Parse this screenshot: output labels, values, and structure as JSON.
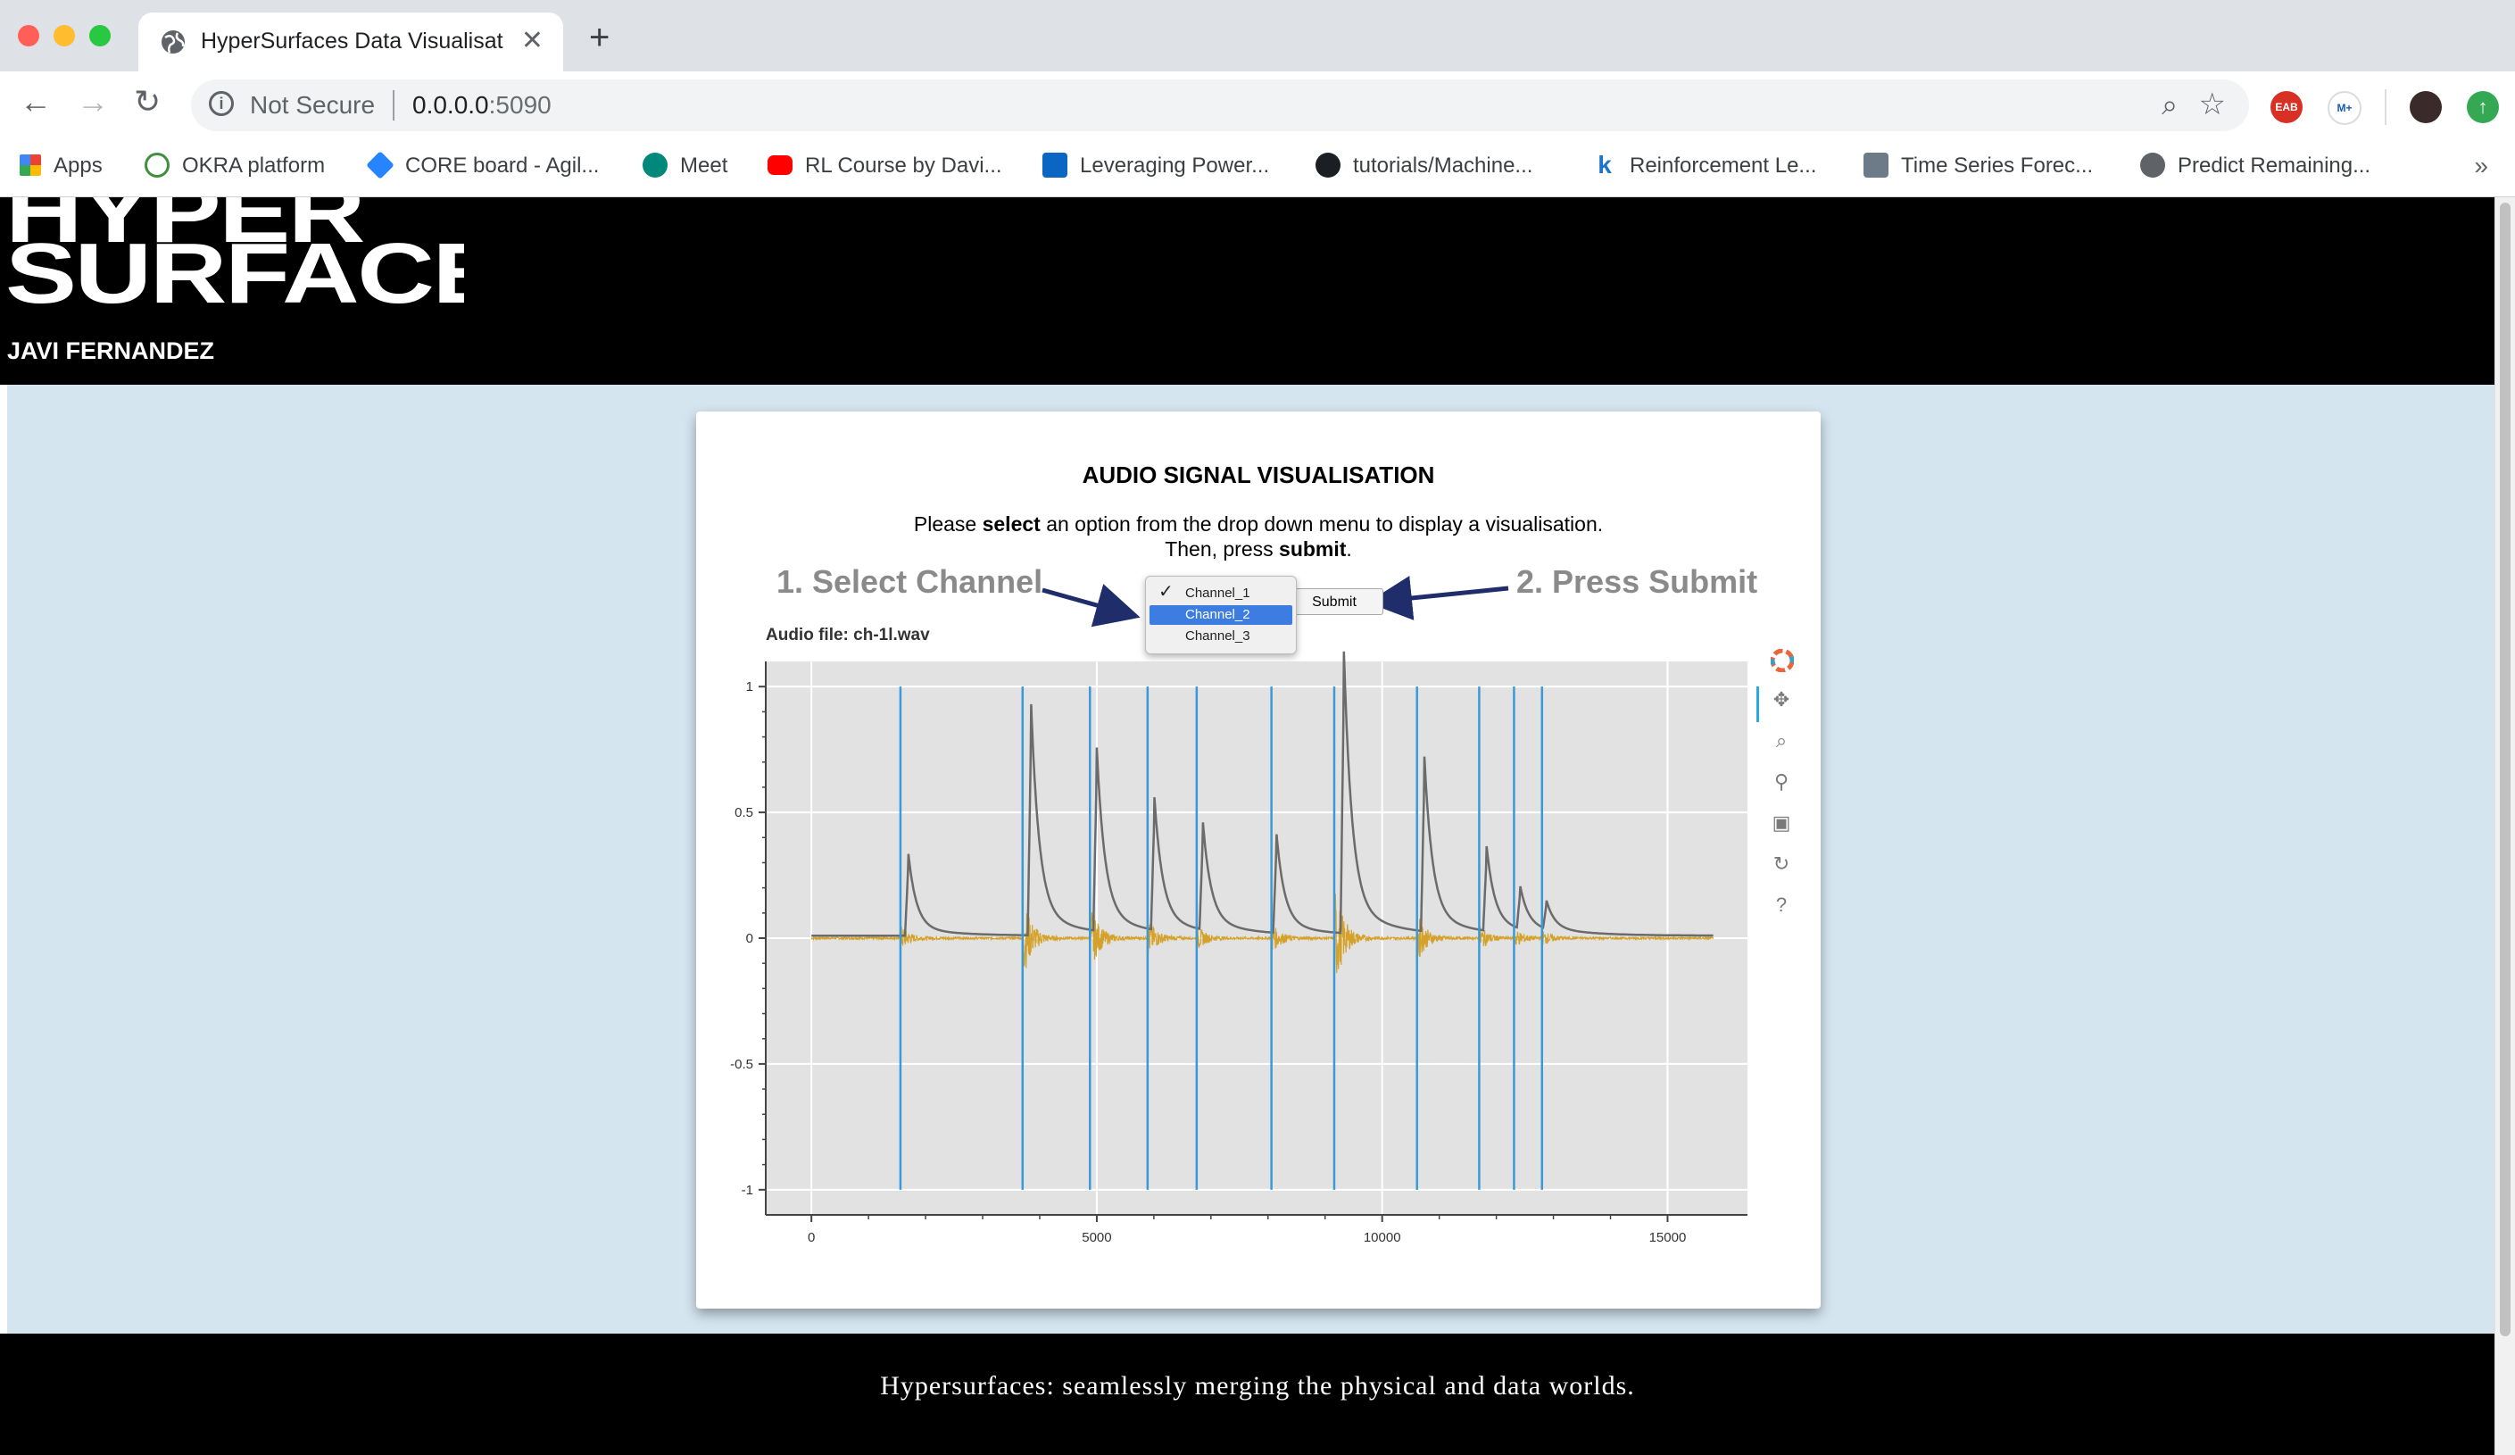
{
  "browser": {
    "tab_title": "HyperSurfaces Data Visualisati",
    "url_security": "Not Secure",
    "url_host": "0.0.0.0",
    "url_port": ":5090",
    "extensions": [
      "EAB",
      "M+"
    ],
    "bookmarks": [
      {
        "label": "Apps",
        "icon": "apps-grid-icon"
      },
      {
        "label": "OKRA platform",
        "icon": "okra-icon"
      },
      {
        "label": "CORE board - Agil...",
        "icon": "jira-icon"
      },
      {
        "label": "Meet",
        "icon": "meet-icon"
      },
      {
        "label": "RL Course by Davi...",
        "icon": "youtube-icon"
      },
      {
        "label": "Leveraging Power...",
        "icon": "linkedin-icon"
      },
      {
        "label": "tutorials/Machine...",
        "icon": "github-icon"
      },
      {
        "label": "Reinforcement Le...",
        "icon": "k-icon"
      },
      {
        "label": "Time Series Forec...",
        "icon": "thumbnail-icon"
      },
      {
        "label": "Predict Remaining...",
        "icon": "globe-icon"
      }
    ]
  },
  "header": {
    "logo_line1": "HYPER",
    "logo_line2": "SURFACES",
    "author": "JAVI FERNANDEZ"
  },
  "card": {
    "title": "AUDIO SIGNAL VISUALISATION",
    "instr_pre": "Please ",
    "instr_bold1": "select",
    "instr_mid": " an option from the drop down menu to display a visualisation.",
    "instr_line2_pre": "Then, press ",
    "instr_bold2": "submit",
    "instr_end": ".",
    "annotation_1": "1. Select Channel",
    "annotation_2": "2. Press Submit",
    "submit_label": "Submit",
    "dropdown": {
      "options": [
        "Channel_1",
        "Channel_2",
        "Channel_3"
      ],
      "checked": "Channel_1",
      "highlighted": "Channel_2"
    },
    "plot_label": "Audio file: ch-1l.wav"
  },
  "chart_data": {
    "type": "line",
    "title": "Audio file: ch-1l.wav",
    "xlabel": "",
    "ylabel": "",
    "xlim": [
      -800,
      16400
    ],
    "ylim": [
      -1.1,
      1.1
    ],
    "x_ticks": [
      0,
      5000,
      10000,
      15000
    ],
    "y_ticks": [
      1,
      0.5,
      0,
      -0.5,
      -1
    ],
    "grid": true,
    "onset_lines": [
      1560,
      3700,
      4880,
      5890,
      6750,
      8060,
      9160,
      10610,
      11700,
      12310,
      12800
    ],
    "series": [
      {
        "color": "#6b6b6b",
        "peaks": [
          {
            "x": 1700,
            "y": 0.29
          },
          {
            "x": 3850,
            "y": 0.82
          },
          {
            "x": 5000,
            "y": 0.65
          },
          {
            "x": 6010,
            "y": 0.47
          },
          {
            "x": 6860,
            "y": 0.38
          },
          {
            "x": 8150,
            "y": 0.35
          },
          {
            "x": 9330,
            "y": 1.0
          },
          {
            "x": 10740,
            "y": 0.62
          },
          {
            "x": 11830,
            "y": 0.3
          },
          {
            "x": 12420,
            "y": 0.15
          },
          {
            "x": 12880,
            "y": 0.1
          }
        ]
      },
      {
        "color": "#d4a12a",
        "bursts": [
          {
            "x": 1560,
            "amp": 0.05
          },
          {
            "x": 3700,
            "amp": 0.17
          },
          {
            "x": 4880,
            "amp": 0.14
          },
          {
            "x": 5890,
            "amp": 0.08
          },
          {
            "x": 6750,
            "amp": 0.05
          },
          {
            "x": 8060,
            "amp": 0.06
          },
          {
            "x": 9160,
            "amp": 0.22
          },
          {
            "x": 10610,
            "amp": 0.1
          },
          {
            "x": 11700,
            "amp": 0.05
          },
          {
            "x": 12310,
            "amp": 0.04
          },
          {
            "x": 12800,
            "amp": 0.03
          }
        ]
      }
    ],
    "x_end": 15800
  },
  "footer": {
    "text": "Hypersurfaces: seamlessly merging the physical and data worlds."
  }
}
